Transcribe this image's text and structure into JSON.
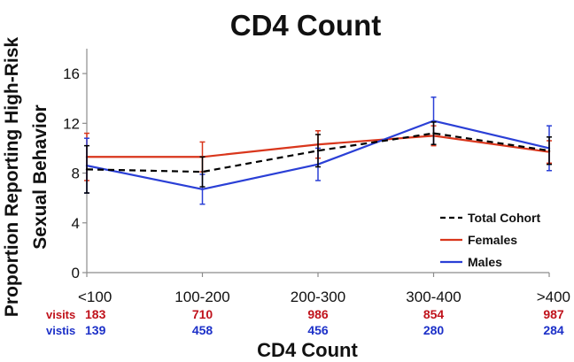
{
  "chart_data": {
    "type": "line",
    "title": "CD4 Count",
    "ylabel_line1": "Proportion Reporting High-Risk",
    "ylabel_line2": "Sexual Behavior",
    "xlabel": "CD4 Count",
    "categories": [
      "<100",
      "100-200",
      "200-300",
      "300-400",
      ">400"
    ],
    "ylim": [
      0,
      18
    ],
    "yticks": [
      0,
      4,
      8,
      12,
      16
    ],
    "grid": false,
    "legend_position": "bottom-right",
    "series": [
      {
        "name": "Total Cohort",
        "color": "#000000",
        "dash": true,
        "values": [
          8.3,
          8.1,
          9.8,
          11.2,
          9.8
        ],
        "err": [
          1.9,
          1.2,
          1.3,
          0.9,
          1.1
        ],
        "error_bars": true
      },
      {
        "name": "Females",
        "color": "#d9361c",
        "dash": false,
        "values": [
          9.3,
          9.3,
          10.3,
          11.0,
          9.7
        ],
        "err": [
          1.9,
          1.2,
          1.1,
          0.8,
          0.9
        ],
        "error_bars": true
      },
      {
        "name": "Males",
        "color": "#2a3fd6",
        "dash": false,
        "values": [
          8.6,
          6.7,
          8.7,
          12.2,
          10.0
        ],
        "err": [
          2.2,
          1.2,
          1.3,
          1.9,
          1.8
        ],
        "error_bars": true
      }
    ],
    "visits": {
      "label": "visits",
      "color": "#c0121b",
      "values": [
        "183",
        "710",
        "986",
        "854",
        "987"
      ]
    },
    "vistis": {
      "label": "vistis",
      "color": "#1c30c8",
      "values": [
        "139",
        "458",
        "456",
        "280",
        "284"
      ]
    }
  }
}
